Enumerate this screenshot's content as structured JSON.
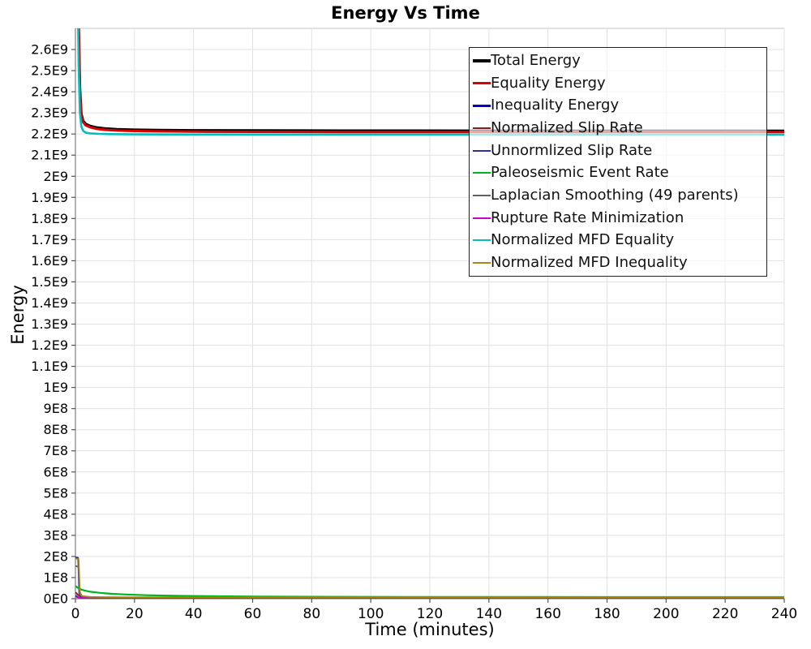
{
  "title": "Energy Vs Time",
  "chart_data": {
    "type": "line",
    "title": "Energy Vs Time",
    "xlabel": "Time (minutes)",
    "ylabel": "Energy",
    "xlim": [
      0,
      240
    ],
    "ylim": [
      0,
      2700000000.0
    ],
    "grid": true,
    "legend_position": "top-right-inside",
    "x_ticks": [
      0,
      20,
      40,
      60,
      80,
      100,
      120,
      140,
      160,
      180,
      200,
      220,
      240
    ],
    "y_ticks": [
      {
        "value": 0,
        "label": "0E0"
      },
      {
        "value": 100000000.0,
        "label": "1E8"
      },
      {
        "value": 200000000.0,
        "label": "2E8"
      },
      {
        "value": 300000000.0,
        "label": "3E8"
      },
      {
        "value": 400000000.0,
        "label": "4E8"
      },
      {
        "value": 500000000.0,
        "label": "5E8"
      },
      {
        "value": 600000000.0,
        "label": "6E8"
      },
      {
        "value": 700000000.0,
        "label": "7E8"
      },
      {
        "value": 800000000.0,
        "label": "8E8"
      },
      {
        "value": 900000000.0,
        "label": "9E8"
      },
      {
        "value": 1000000000.0,
        "label": "1E9"
      },
      {
        "value": 1100000000.0,
        "label": "1.1E9"
      },
      {
        "value": 1200000000.0,
        "label": "1.2E9"
      },
      {
        "value": 1300000000.0,
        "label": "1.3E9"
      },
      {
        "value": 1400000000.0,
        "label": "1.4E9"
      },
      {
        "value": 1500000000.0,
        "label": "1.5E9"
      },
      {
        "value": 1600000000.0,
        "label": "1.6E9"
      },
      {
        "value": 1700000000.0,
        "label": "1.7E9"
      },
      {
        "value": 1800000000.0,
        "label": "1.8E9"
      },
      {
        "value": 1900000000.0,
        "label": "1.9E9"
      },
      {
        "value": 2000000000.0,
        "label": "2E9"
      },
      {
        "value": 2100000000.0,
        "label": "2.1E9"
      },
      {
        "value": 2200000000.0,
        "label": "2.2E9"
      },
      {
        "value": 2300000000.0,
        "label": "2.3E9"
      },
      {
        "value": 2400000000.0,
        "label": "2.4E9"
      },
      {
        "value": 2500000000.0,
        "label": "2.5E9"
      },
      {
        "value": 2600000000.0,
        "label": "2.6E9"
      }
    ],
    "colors": {
      "grid": "#e2e2e2",
      "plot_border": "#c4c4c4",
      "axis": "#808080",
      "tick": "#555555",
      "text": "#000000"
    },
    "series": [
      {
        "id": "total-energy",
        "name": "Total Energy",
        "color": "#000000",
        "width": 3.2,
        "points": [
          [
            0,
            5200000000.0
          ],
          [
            0.7,
            3300000000.0
          ],
          [
            1.1,
            2720000000.0
          ],
          [
            1.5,
            2420000000.0
          ],
          [
            2,
            2295000000.0
          ],
          [
            2.6,
            2262000000.0
          ],
          [
            3.5,
            2247000000.0
          ],
          [
            5,
            2238000000.0
          ],
          [
            7,
            2231000000.0
          ],
          [
            10,
            2226000000.0
          ],
          [
            14,
            2222500000.0
          ],
          [
            20,
            2220000000.0
          ],
          [
            28,
            2218500000.0
          ],
          [
            40,
            2217200000.0
          ],
          [
            60,
            2216300000.0
          ],
          [
            90,
            2215700000.0
          ],
          [
            140,
            2215200000.0
          ],
          [
            240,
            2215000000.0
          ]
        ]
      },
      {
        "id": "equality-energy",
        "name": "Equality Energy",
        "color": "#dd0000",
        "width": 3,
        "points": [
          [
            0,
            5000000000.0
          ],
          [
            0.7,
            3250000000.0
          ],
          [
            1.1,
            2690000000.0
          ],
          [
            1.5,
            2400000000.0
          ],
          [
            2,
            2288000000.0
          ],
          [
            2.6,
            2256000000.0
          ],
          [
            3.5,
            2241000000.0
          ],
          [
            5,
            2232000000.0
          ],
          [
            7,
            2225000000.0
          ],
          [
            10,
            2220000000.0
          ],
          [
            14,
            2216500000.0
          ],
          [
            20,
            2214000000.0
          ],
          [
            28,
            2212500000.0
          ],
          [
            40,
            2211200000.0
          ],
          [
            60,
            2210300000.0
          ],
          [
            90,
            2209700000.0
          ],
          [
            140,
            2209200000.0
          ],
          [
            240,
            2209000000.0
          ]
        ]
      },
      {
        "id": "inequality-energy",
        "name": "Inequality Energy",
        "color": "#0000cc",
        "width": 2,
        "points": [
          [
            0,
            14000000.0
          ],
          [
            1,
            6000000.0
          ],
          [
            2.5,
            3000000.0
          ],
          [
            8,
            1800000.0
          ],
          [
            30,
            1300000.0
          ],
          [
            240,
            1100000.0
          ]
        ]
      },
      {
        "id": "normalized-slip-rate",
        "name": "Normalized Slip Rate",
        "color": "#8b1a1a",
        "width": 2,
        "points": [
          [
            0,
            30000000.0
          ],
          [
            1,
            17000000.0
          ],
          [
            2,
            10000000.0
          ],
          [
            4,
            6500000.0
          ],
          [
            10,
            5000000.0
          ],
          [
            40,
            4200000.0
          ],
          [
            240,
            4000000.0
          ]
        ]
      },
      {
        "id": "unnormalized-slip-rate",
        "name": "Unnormlized Slip Rate",
        "color": "#2e2e9e",
        "width": 1.8,
        "points": [
          [
            0,
            197000000.0
          ],
          [
            0.9,
            194000000.0
          ],
          [
            1.25,
            26000000.0
          ],
          [
            1.8,
            10000000.0
          ],
          [
            4,
            5500000.0
          ],
          [
            20,
            4000000.0
          ],
          [
            240,
            3600000.0
          ]
        ]
      },
      {
        "id": "paleoseismic-event-rate",
        "name": "Paleoseismic Event Rate",
        "color": "#00b41e",
        "width": 2.2,
        "points": [
          [
            0,
            60000000.0
          ],
          [
            1,
            50000000.0
          ],
          [
            2,
            43000000.0
          ],
          [
            3,
            39000000.0
          ],
          [
            5,
            33000000.0
          ],
          [
            8,
            28000000.0
          ],
          [
            12,
            23500000.0
          ],
          [
            17,
            20000000.0
          ],
          [
            24,
            16500000.0
          ],
          [
            33,
            14000000.0
          ],
          [
            45,
            12000000.0
          ],
          [
            60,
            10500000.0
          ],
          [
            80,
            9300000.0
          ],
          [
            110,
            8500000.0
          ],
          [
            150,
            8000000.0
          ],
          [
            200,
            7700000.0
          ],
          [
            240,
            7500000.0
          ]
        ]
      },
      {
        "id": "laplacian-smoothing",
        "name": "Laplacian Smoothing (49 parents)",
        "color": "#606060",
        "width": 1.8,
        "points": [
          [
            0,
            155000000.0
          ],
          [
            1.1,
            150000000.0
          ],
          [
            1.5,
            20000000.0
          ],
          [
            2.5,
            9000000.0
          ],
          [
            6,
            6000000.0
          ],
          [
            20,
            5000000.0
          ],
          [
            240,
            4500000.0
          ]
        ]
      },
      {
        "id": "rupture-rate-minimization",
        "name": "Rupture Rate Minimization",
        "color": "#cc00cc",
        "width": 1.8,
        "points": [
          [
            0,
            10000000.0
          ],
          [
            1,
            5000000.0
          ],
          [
            3,
            3000000.0
          ],
          [
            10,
            2200000.0
          ],
          [
            40,
            1800000.0
          ],
          [
            240,
            1600000.0
          ]
        ]
      },
      {
        "id": "normalized-mfd-equality",
        "name": "Normalized MFD Equality",
        "color": "#00bfbf",
        "width": 2.6,
        "points": [
          [
            0,
            4600000000.0
          ],
          [
            0.7,
            3000000000.0
          ],
          [
            1.1,
            2520000000.0
          ],
          [
            1.5,
            2300000000.0
          ],
          [
            2,
            2235000000.0
          ],
          [
            2.6,
            2215000000.0
          ],
          [
            3.5,
            2206500000.0
          ],
          [
            5,
            2203000000.0
          ],
          [
            8,
            2200800000.0
          ],
          [
            12,
            2199500000.0
          ],
          [
            20,
            2198500000.0
          ],
          [
            40,
            2197700000.0
          ],
          [
            80,
            2197200000.0
          ],
          [
            240,
            2197000000.0
          ]
        ]
      },
      {
        "id": "normalized-mfd-inequality",
        "name": "Normalized MFD Inequality",
        "color": "#a8860d",
        "width": 1.8,
        "points": [
          [
            0,
            190000000.0
          ],
          [
            1.1,
            187000000.0
          ],
          [
            1.5,
            32000000.0
          ],
          [
            2.2,
            13000000.0
          ],
          [
            5,
            8500000.0
          ],
          [
            15,
            7000000.0
          ],
          [
            60,
            6600000.0
          ],
          [
            240,
            6500000.0
          ]
        ]
      }
    ],
    "legend": [
      {
        "label": "Total Energy",
        "color": "#000000",
        "width": 4
      },
      {
        "label": "Equality Energy",
        "color": "#dd0000",
        "width": 3.5
      },
      {
        "label": "Inequality Energy",
        "color": "#0000cc",
        "width": 3
      },
      {
        "label": "Normalized Slip Rate",
        "color": "#8b1a1a",
        "width": 2.5
      },
      {
        "label": "Unnormlized Slip Rate",
        "color": "#2e2e9e",
        "width": 2
      },
      {
        "label": "Paleoseismic Event Rate",
        "color": "#00b41e",
        "width": 2
      },
      {
        "label": "Laplacian Smoothing (49 parents)",
        "color": "#606060",
        "width": 2
      },
      {
        "label": "Rupture Rate Minimization",
        "color": "#cc00cc",
        "width": 2
      },
      {
        "label": "Normalized MFD Equality",
        "color": "#00bfbf",
        "width": 2
      },
      {
        "label": "Normalized MFD Inequality",
        "color": "#a8860d",
        "width": 2
      }
    ]
  }
}
